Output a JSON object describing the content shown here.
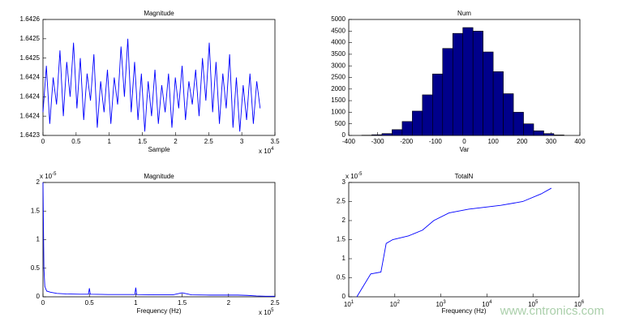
{
  "chart_data": [
    {
      "type": "line",
      "title": "Magnitude",
      "xlabel": "Sample",
      "color": "#0000ff",
      "x_multiplier": {
        "base": "x 10",
        "exponent": "4"
      },
      "xlim": [
        0,
        35000
      ],
      "xticks": [
        {
          "value": 0,
          "label": "0"
        },
        {
          "value": 5000,
          "label": "0.5"
        },
        {
          "value": 10000,
          "label": "1"
        },
        {
          "value": 15000,
          "label": "1.5"
        },
        {
          "value": 20000,
          "label": "2"
        },
        {
          "value": 25000,
          "label": "2.5"
        },
        {
          "value": 30000,
          "label": "3"
        },
        {
          "value": 35000,
          "label": "3.5"
        }
      ],
      "ylim": [
        1.6423,
        1.6426
      ],
      "yticks": [
        {
          "value": 1.6423,
          "label": "1.6423"
        },
        {
          "value": 1.64235,
          "label": "1.6424"
        },
        {
          "value": 1.6424,
          "label": "1.6424"
        },
        {
          "value": 1.64245,
          "label": "1.6424"
        },
        {
          "value": 1.6425,
          "label": "1.6425"
        },
        {
          "value": 1.64255,
          "label": "1.6425"
        },
        {
          "value": 1.6426,
          "label": "1.6426"
        }
      ],
      "x": [
        0,
        512,
        1024,
        1536,
        2048,
        2560,
        3072,
        3584,
        4096,
        4608,
        5120,
        5632,
        6144,
        6656,
        7168,
        7680,
        8192,
        8704,
        9216,
        9728,
        10240,
        10752,
        11264,
        11776,
        12288,
        12800,
        13312,
        13824,
        14336,
        14848,
        15360,
        15872,
        16384,
        16896,
        17408,
        17920,
        18432,
        18944,
        19456,
        19968,
        20480,
        20992,
        21504,
        22016,
        22528,
        23040,
        23552,
        24064,
        24576,
        25088,
        25600,
        26112,
        26624,
        27136,
        27648,
        28160,
        28672,
        29184,
        29696,
        30208,
        30720,
        31232,
        31744,
        32256,
        32768
      ],
      "values": [
        1.64236,
        1.64248,
        1.64233,
        1.64245,
        1.64238,
        1.64252,
        1.64235,
        1.64249,
        1.6424,
        1.64254,
        1.64237,
        1.6425,
        1.64234,
        1.64246,
        1.64239,
        1.64251,
        1.64232,
        1.64244,
        1.64236,
        1.64247,
        1.64233,
        1.64245,
        1.64238,
        1.64253,
        1.6424,
        1.64255,
        1.64236,
        1.64249,
        1.64234,
        1.64246,
        1.64231,
        1.64244,
        1.64235,
        1.64247,
        1.64233,
        1.64243,
        1.64236,
        1.64246,
        1.64232,
        1.64245,
        1.64237,
        1.64248,
        1.64234,
        1.64244,
        1.64238,
        1.64247,
        1.64235,
        1.6425,
        1.64239,
        1.64254,
        1.64236,
        1.64249,
        1.64233,
        1.64246,
        1.64237,
        1.64251,
        1.64232,
        1.64245,
        1.64231,
        1.64243,
        1.64234,
        1.64246,
        1.64233,
        1.64244,
        1.64237
      ]
    },
    {
      "type": "histogram",
      "title": "Num",
      "xlabel": "Var",
      "color": "#00008b",
      "xlim": [
        -400,
        400
      ],
      "xticks": [
        -400,
        -300,
        -200,
        -100,
        0,
        100,
        200,
        300,
        400
      ],
      "ylim": [
        0,
        5000
      ],
      "yticks": [
        0,
        500,
        1000,
        1500,
        2000,
        2500,
        3000,
        3500,
        4000,
        4500,
        5000
      ],
      "bins": [
        -355,
        -320,
        -285,
        -250,
        -215,
        -180,
        -145,
        -110,
        -75,
        -40,
        -5,
        30,
        65,
        100,
        135,
        170,
        205,
        240,
        275,
        310,
        345
      ],
      "values": [
        10,
        30,
        80,
        250,
        600,
        1050,
        1750,
        2650,
        3750,
        4400,
        4650,
        4500,
        3600,
        2750,
        1800,
        1000,
        500,
        200,
        80,
        20
      ]
    },
    {
      "type": "line",
      "title": "Magnitude",
      "xlabel": "Frequency (Hz)",
      "color": "#0000ff",
      "x_multiplier": {
        "base": "x 10",
        "exponent": "5"
      },
      "y_multiplier": {
        "base": "x 10",
        "exponent": "-5"
      },
      "xlim": [
        0,
        250000
      ],
      "xticks": [
        {
          "value": 0,
          "label": "0"
        },
        {
          "value": 50000,
          "label": "0.5"
        },
        {
          "value": 100000,
          "label": "1"
        },
        {
          "value": 150000,
          "label": "1.5"
        },
        {
          "value": 200000,
          "label": "2"
        },
        {
          "value": 250000,
          "label": "2.5"
        }
      ],
      "ylim": [
        0,
        2e-05
      ],
      "yticks": [
        {
          "value": 0,
          "label": "0"
        },
        {
          "value": 5e-06,
          "label": "0.5"
        },
        {
          "value": 1e-05,
          "label": "1"
        },
        {
          "value": 1.5e-05,
          "label": "1.5"
        },
        {
          "value": 2e-05,
          "label": "2"
        }
      ],
      "x": [
        0,
        1000,
        2000,
        4000,
        8000,
        15000,
        25000,
        40000,
        49000,
        50000,
        51000,
        70000,
        90000,
        99000,
        100000,
        101000,
        120000,
        140000,
        150000,
        160000,
        180000,
        200000,
        210000,
        220000,
        230000,
        240000,
        250000
      ],
      "values": [
        2e-05,
        5e-06,
        1.8e-06,
        1e-06,
        8e-07,
        6e-07,
        5e-07,
        4.5e-07,
        4.5e-07,
        1.5e-06,
        4.5e-07,
        4e-07,
        4e-07,
        4e-07,
        1.6e-06,
        4e-07,
        3.5e-07,
        3.5e-07,
        7e-07,
        3.5e-07,
        3e-07,
        3e-07,
        3e-07,
        2.5e-07,
        1.5e-07,
        1e-07,
        1e-07
      ]
    },
    {
      "type": "line",
      "title": "TotalN",
      "xlabel": "Frequency (Hz)",
      "color": "#0000ff",
      "xscale": "log",
      "y_multiplier": {
        "base": "x 10",
        "exponent": "-5"
      },
      "xlim": [
        10,
        1000000
      ],
      "xticks": [
        {
          "value": 10,
          "label": "10",
          "exponent": "1"
        },
        {
          "value": 100,
          "label": "10",
          "exponent": "2"
        },
        {
          "value": 1000,
          "label": "10",
          "exponent": "3"
        },
        {
          "value": 10000,
          "label": "10",
          "exponent": "4"
        },
        {
          "value": 100000,
          "label": "10",
          "exponent": "5"
        },
        {
          "value": 1000000,
          "label": "10",
          "exponent": "6"
        }
      ],
      "ylim": [
        0,
        3e-05
      ],
      "yticks": [
        {
          "value": 0,
          "label": "0"
        },
        {
          "value": 5e-06,
          "label": "0.5"
        },
        {
          "value": 1e-05,
          "label": "1"
        },
        {
          "value": 1.5e-05,
          "label": "1.5"
        },
        {
          "value": 2e-05,
          "label": "2"
        },
        {
          "value": 2.5e-05,
          "label": "2.5"
        },
        {
          "value": 3e-05,
          "label": "3"
        }
      ],
      "x": [
        15,
        30,
        50,
        65,
        90,
        200,
        400,
        700,
        1500,
        4000,
        20000,
        60000,
        150000,
        250000
      ],
      "values": [
        0,
        6e-06,
        6.5e-06,
        1.4e-05,
        1.5e-05,
        1.6e-05,
        1.75e-05,
        2e-05,
        2.2e-05,
        2.3e-05,
        2.4e-05,
        2.5e-05,
        2.7e-05,
        2.85e-05
      ]
    }
  ],
  "watermark": "www.cntronics.com"
}
